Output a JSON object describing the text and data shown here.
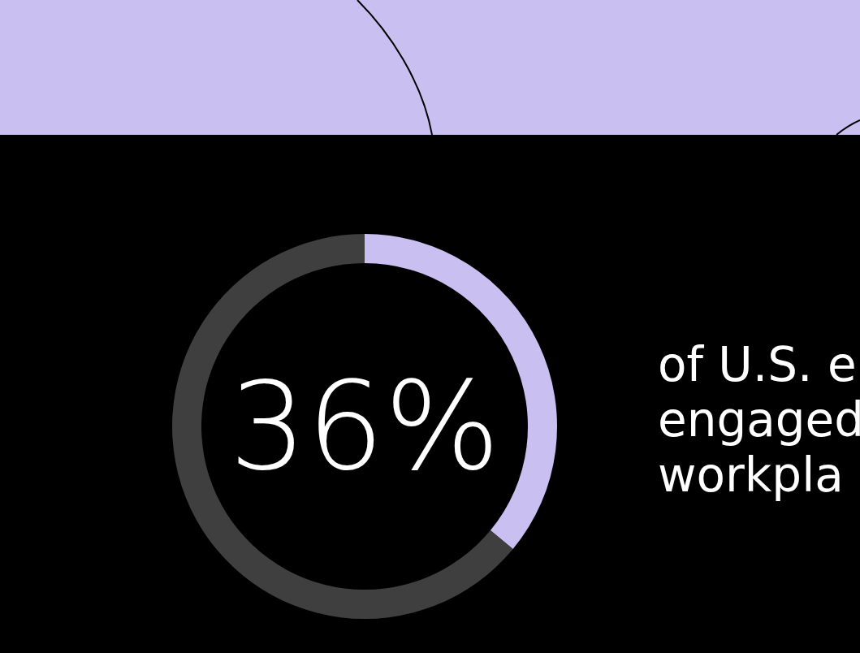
{
  "chart_data": {
    "type": "donut",
    "categories": [
      null,
      null
    ],
    "values": [
      36,
      64
    ],
    "colors": [
      "#c9bff0",
      "#3f3f3f"
    ],
    "value_labels": [
      "36%",
      null
    ],
    "annotations": [
      "of U.S. e",
      "engaged",
      "workpla"
    ]
  }
}
